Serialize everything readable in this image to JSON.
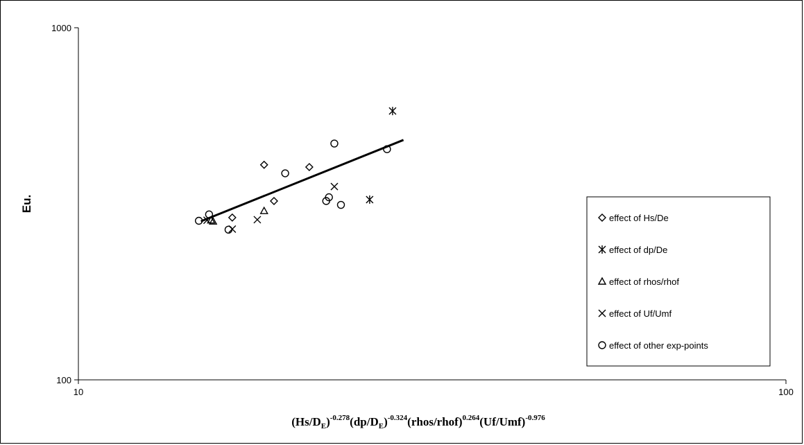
{
  "chart_data": {
    "type": "scatter",
    "ylabel": "Eu.",
    "xlabel_parts": [
      {
        "text": "(Hs/D",
        "style": "normal"
      },
      {
        "text": "E",
        "style": "sub"
      },
      {
        "text": ")",
        "style": "normal"
      },
      {
        "text": "-0.278",
        "style": "sup"
      },
      {
        "text": "(dp/D",
        "style": "normal"
      },
      {
        "text": "E",
        "style": "sub"
      },
      {
        "text": ")",
        "style": "normal"
      },
      {
        "text": "-0.324",
        "style": "sup"
      },
      {
        "text": "(rhos/rhof)",
        "style": "normal"
      },
      {
        "text": "0.264",
        "style": "sup"
      },
      {
        "text": "(Uf/Umf)",
        "style": "normal"
      },
      {
        "text": "-0.976",
        "style": "sup"
      }
    ],
    "xscale": "log",
    "yscale": "log",
    "xlim": [
      10,
      100
    ],
    "ylim": [
      100,
      1000
    ],
    "xticks": [
      10,
      100
    ],
    "yticks": [
      100,
      1000
    ],
    "xtick_labels": [
      "10",
      "100"
    ],
    "ytick_labels": [
      "100",
      "1000"
    ],
    "grid": false,
    "legend_position": "right",
    "series": [
      {
        "name": "effect of Hs/De",
        "marker": "diamond",
        "x": [
          16.5,
          18.3,
          18.9,
          21.2
        ],
        "y": [
          289,
          408,
          322,
          402
        ]
      },
      {
        "name": "effect of dp/De",
        "marker": "asterisk",
        "x": [
          25.8,
          27.8
        ],
        "y": [
          325,
          580
        ]
      },
      {
        "name": "effect of rhos/rhof",
        "marker": "triangle",
        "x": [
          15.4,
          15.5,
          18.3
        ],
        "y": [
          284,
          282,
          302
        ]
      },
      {
        "name": "effect of Uf/Umf",
        "marker": "x",
        "x": [
          15.2,
          16.5,
          17.9,
          23.0
        ],
        "y": [
          284,
          268,
          285,
          354
        ]
      },
      {
        "name": "effect of other exp-points",
        "marker": "circle",
        "x": [
          14.8,
          15.3,
          16.3,
          19.6,
          22.4,
          22.6,
          23.0,
          23.5,
          27.3
        ],
        "y": [
          283,
          295,
          267,
          386,
          322,
          330,
          469,
          314,
          452
        ]
      }
    ],
    "fit_line": {
      "x": [
        14.9,
        28.8
      ],
      "y": [
        282,
        480
      ]
    }
  }
}
